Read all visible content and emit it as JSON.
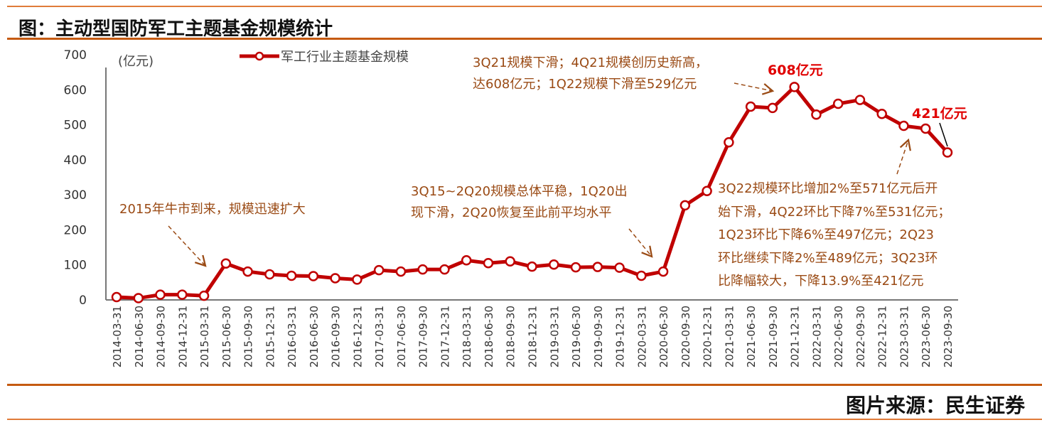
{
  "header": {
    "title": "图：主动型国防军工主题基金规模统计"
  },
  "footer": {
    "source": "图片来源：民生证券"
  },
  "colors": {
    "series": "#c00000",
    "annotation": "#9a4a14",
    "highlight": "#e00000",
    "rule": "#e07b39"
  },
  "chart_data": {
    "type": "line",
    "title": "",
    "ylabel": "(亿元)",
    "ylim": [
      0,
      700
    ],
    "yticks": [
      0,
      100,
      200,
      300,
      400,
      500,
      600,
      700
    ],
    "grid": false,
    "legend_position": "top",
    "categories": [
      "2014-03-31",
      "2014-06-30",
      "2014-09-30",
      "2014-12-31",
      "2015-03-31",
      "2015-06-30",
      "2015-09-30",
      "2015-12-31",
      "2016-03-31",
      "2016-06-30",
      "2016-09-30",
      "2016-12-31",
      "2017-03-31",
      "2017-06-30",
      "2017-09-30",
      "2017-12-31",
      "2018-03-31",
      "2018-06-30",
      "2018-09-30",
      "2018-12-31",
      "2019-03-31",
      "2019-06-30",
      "2019-09-30",
      "2019-12-31",
      "2020-03-31",
      "2020-06-30",
      "2020-09-30",
      "2020-12-31",
      "2021-03-31",
      "2021-06-30",
      "2021-09-30",
      "2021-12-31",
      "2022-03-31",
      "2022-06-30",
      "2022-09-30",
      "2022-12-31",
      "2023-03-31",
      "2023-06-30",
      "2023-09-30"
    ],
    "series": [
      {
        "name": "军工行业主题基金规模",
        "values": [
          8,
          5,
          15,
          15,
          12,
          104,
          81,
          73,
          69,
          68,
          62,
          58,
          85,
          81,
          87,
          87,
          113,
          105,
          110,
          95,
          101,
          93,
          94,
          92,
          69,
          81,
          270,
          311,
          450,
          552,
          548,
          608,
          529,
          560,
          571,
          531,
          497,
          489,
          421
        ]
      }
    ],
    "annotations": [
      {
        "text": [
          "2015年牛市到来，规模迅速扩大"
        ]
      },
      {
        "text": [
          "3Q15~2Q20规模总体平稳，1Q20出",
          "现下滑，2Q20恢复至此前平均水平"
        ]
      },
      {
        "text": [
          "3Q21规模下滑；4Q21规模创历史新高，",
          "达608亿元；1Q22规模下滑至529亿元"
        ]
      },
      {
        "text": [
          "3Q22规模环比增加2%至571亿元后开",
          "始下滑，4Q22环比下降7%至531亿元；",
          "1Q23环比下降6%至497亿元；2Q23",
          "环比继续下降2%至489亿元；3Q23环",
          "比降幅较大，下降13.9%至421亿元"
        ]
      }
    ],
    "highlights": {
      "peak": "608亿元",
      "latest": "421亿元"
    }
  }
}
